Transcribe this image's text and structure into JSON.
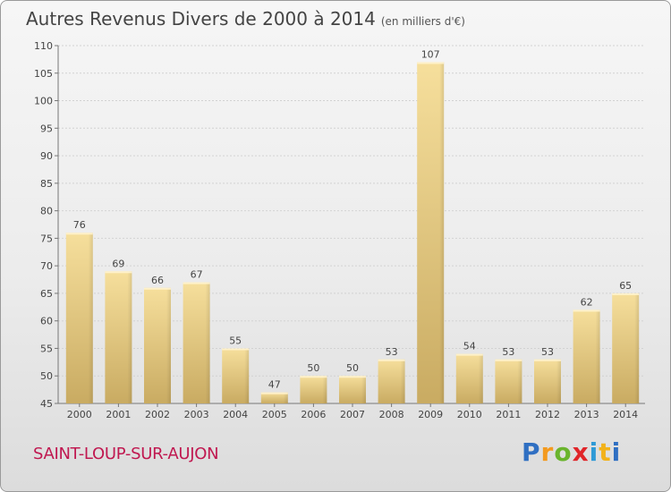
{
  "chart_data": {
    "type": "bar",
    "title": "Autres Revenus Divers de 2000 à 2014",
    "unit": "(en milliers d'€)",
    "categories": [
      "2000",
      "2001",
      "2002",
      "2003",
      "2004",
      "2005",
      "2006",
      "2007",
      "2008",
      "2009",
      "2010",
      "2011",
      "2012",
      "2013",
      "2014"
    ],
    "values": [
      76,
      69,
      66,
      67,
      55,
      47,
      50,
      50,
      53,
      107,
      54,
      53,
      53,
      62,
      65
    ],
    "ylim": [
      45,
      110
    ],
    "yticks": [
      45,
      50,
      55,
      60,
      65,
      70,
      75,
      80,
      85,
      90,
      95,
      100,
      105,
      110
    ],
    "grid": true,
    "bar_color": "#e8cd85",
    "bar_color_dark": "#c8aa62"
  },
  "footer": {
    "place": "SAINT-LOUP-SUR-AUJON",
    "place_color": "#c01850",
    "logo_letters": [
      "P",
      "r",
      "o",
      "x",
      "i",
      "t",
      "i"
    ],
    "logo_colors": [
      "#2f6fc2",
      "#f39a1f",
      "#6ab42d",
      "#e0262a",
      "#2f9ad6",
      "#f2b21b",
      "#2f6fc2"
    ]
  }
}
